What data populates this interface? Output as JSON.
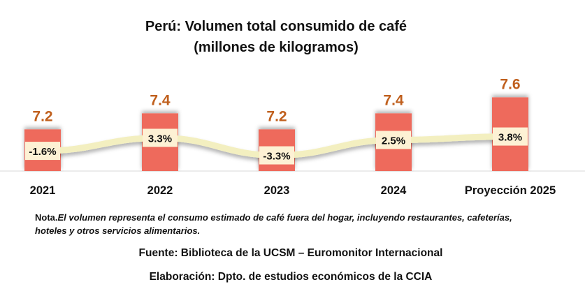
{
  "chart_data": {
    "type": "bar",
    "title": "Perú: Volumen total consumido de café",
    "subtitle": "(millones de kilogramos)",
    "categories": [
      "2021",
      "2022",
      "2023",
      "2024",
      "Proyección 2025"
    ],
    "series": [
      {
        "name": "Volumen (millones de kg)",
        "type": "bar",
        "values": [
          7.2,
          7.4,
          7.2,
          7.4,
          7.6
        ],
        "labels": [
          "7.2",
          "7.4",
          "7.2",
          "7.4",
          "7.6"
        ]
      },
      {
        "name": "Variación %",
        "type": "line",
        "values": [
          -1.6,
          3.3,
          -3.3,
          2.5,
          3.8
        ],
        "labels": [
          "-1.6%",
          "3.3%",
          "-3.3%",
          "2.5%",
          "3.8%"
        ]
      }
    ],
    "ylim": [
      6.68,
      7.9
    ],
    "y2lim": [
      -10,
      10
    ],
    "grid": false,
    "colors": {
      "bar": "#ee6a5b",
      "bar_label": "#c0601e",
      "line": "#f3efc0",
      "line_label_bg": "#fdf1d4"
    }
  },
  "notes": {
    "nota_prefix": "Nota.",
    "nota_line1": "El volumen representa el consumo estimado de café fuera del hogar, incluyendo restaurantes, cafeterías,",
    "nota_line2": "hoteles y otros servicios alimentarios.",
    "fuente": "Fuente: Biblioteca de la UCSM – Euromonitor Internacional",
    "elaboracion": "Elaboración: Dpto. de estudios económicos de la CCIA"
  }
}
